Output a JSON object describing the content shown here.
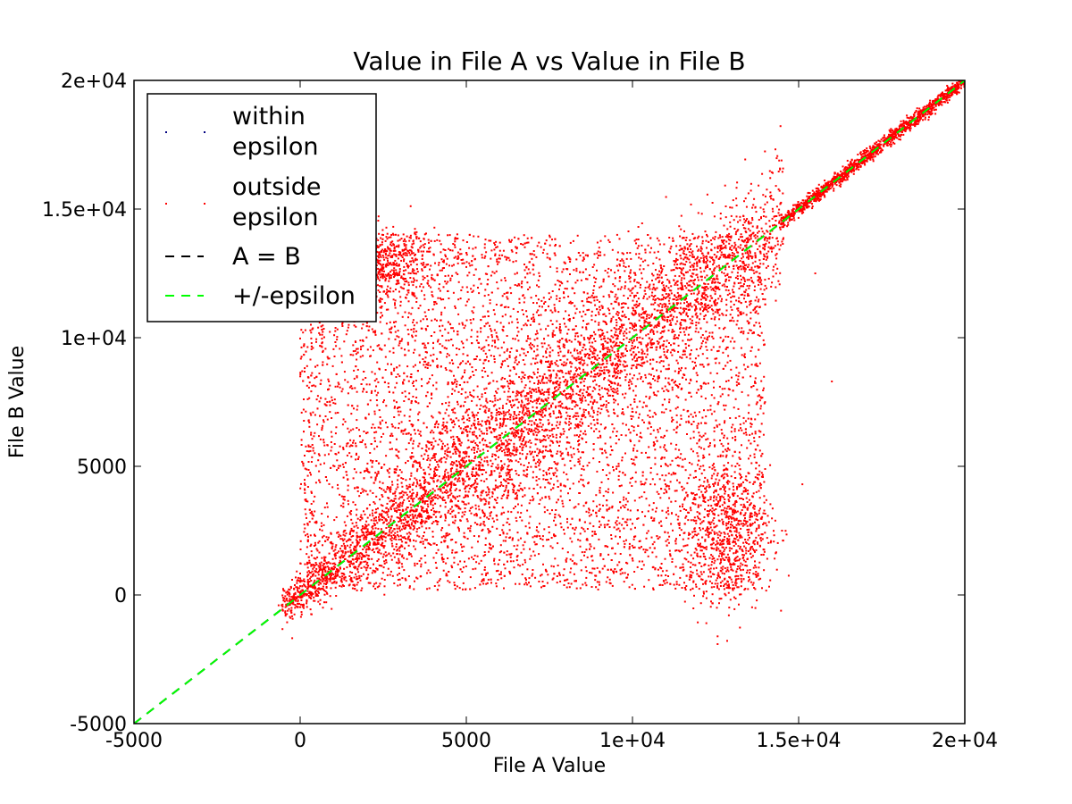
{
  "chart_data": {
    "type": "scatter",
    "title": "Value in File A vs Value in File B",
    "xlabel": "File A Value",
    "ylabel": "File B Value",
    "xlim": [
      -5000,
      20000
    ],
    "ylim": [
      -5000,
      20000
    ],
    "x_ticks": [
      -5000,
      0,
      5000,
      10000,
      15000,
      20000
    ],
    "x_tick_labels": [
      "-5000",
      "0",
      "5000",
      "1e+04",
      "1.5e+04",
      "2e+04"
    ],
    "y_ticks": [
      -5000,
      0,
      5000,
      10000,
      15000,
      20000
    ],
    "y_tick_labels": [
      "-5000",
      "0",
      "5000",
      "1e+04",
      "1.5e+04",
      "2e+04"
    ],
    "grid": false,
    "legend_position": "top-left",
    "series": [
      {
        "name": "within epsilon",
        "legend_label_lines": [
          "within",
          "epsilon"
        ],
        "kind": "scatter",
        "color": "#000080",
        "values": []
      },
      {
        "name": "outside epsilon",
        "legend_label_lines": [
          "outside",
          "epsilon"
        ],
        "kind": "scatter",
        "color": "#ff0000",
        "description_of_distribution": "dense cloud along the diagonal from about (-500,-500) to (20000,20000), plus a broad block spanning x ≈ 0–14000 and y ≈ 0–14000",
        "values": [
          [
            -500,
            -200
          ],
          [
            0,
            100
          ],
          [
            1000,
            800
          ],
          [
            2000,
            1900
          ],
          [
            3000,
            3300
          ],
          [
            4000,
            3700
          ],
          [
            5000,
            5200
          ],
          [
            6000,
            5800
          ],
          [
            7000,
            7300
          ],
          [
            8000,
            7800
          ],
          [
            9000,
            9200
          ],
          [
            10000,
            9800
          ],
          [
            11000,
            11300
          ],
          [
            12000,
            11800
          ],
          [
            13000,
            13200
          ],
          [
            14000,
            13900
          ],
          [
            15000,
            15100
          ],
          [
            16000,
            16100
          ],
          [
            17000,
            17050
          ],
          [
            18000,
            18050
          ],
          [
            19000,
            19050
          ],
          [
            19800,
            19850
          ],
          [
            1000,
            13500
          ],
          [
            3000,
            13800
          ],
          [
            6000,
            13200
          ],
          [
            9000,
            13500
          ],
          [
            12000,
            13000
          ],
          [
            1000,
            1000
          ],
          [
            3000,
            600
          ],
          [
            6000,
            800
          ],
          [
            9000,
            500
          ],
          [
            13000,
            500
          ],
          [
            500,
            7600
          ],
          [
            13500,
            6000
          ],
          [
            14500,
            2500
          ],
          [
            15500,
            12500
          ],
          [
            16000,
            8300
          ]
        ]
      },
      {
        "name": "A = B",
        "kind": "line",
        "style": "dashed",
        "color": "#000000",
        "points": [
          [
            -5000,
            -5000
          ],
          [
            20000,
            20000
          ]
        ]
      },
      {
        "name": "+/-epsilon",
        "kind": "line",
        "style": "dashed",
        "color": "#00ff00",
        "points": [
          [
            -5000,
            -5000
          ],
          [
            20000,
            20000
          ]
        ]
      }
    ]
  },
  "colors": {
    "outside_epsilon": "#ff0000",
    "within_epsilon": "#000080",
    "a_equals_b": "#000000",
    "epsilon_line": "#00ff00"
  }
}
